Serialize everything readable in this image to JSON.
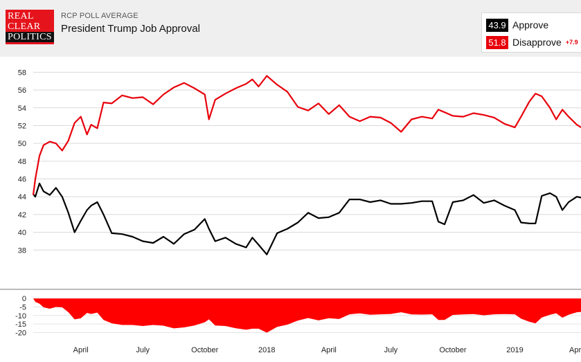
{
  "header": {
    "logo": {
      "line1": "REAL",
      "line2": "CLEAR",
      "line3": "POLITICS"
    },
    "eyebrow": "RCP POLL AVERAGE",
    "title": "President Trump Job Approval"
  },
  "legend": {
    "approve": {
      "value": "43.9",
      "label": "Approve",
      "color": "#000000"
    },
    "disapprove": {
      "value": "51.8",
      "label": "Disapprove",
      "spread": "+7.9",
      "color": "#e8000b"
    }
  },
  "chart_data": [
    {
      "type": "line",
      "title": "President Trump Job Approval",
      "ylim": [
        36,
        58.5
      ],
      "y_ticks": [
        "58",
        "56",
        "54",
        "52",
        "50",
        "48",
        "46",
        "44",
        "42",
        "40",
        "38"
      ],
      "x_ticks": [
        "April",
        "July",
        "October",
        "2018",
        "April",
        "July",
        "October",
        "2019",
        "April"
      ],
      "x_unit": "months since Jan 2017",
      "xlim": [
        0.7,
        27.2
      ],
      "x_tick_positions": [
        3,
        6,
        9,
        12,
        15,
        18,
        21,
        24,
        27
      ],
      "grid": true,
      "legend": "top-right",
      "series": [
        {
          "name": "Approve",
          "color": "#000000",
          "x": [
            0.7,
            0.8,
            1.0,
            1.2,
            1.5,
            1.8,
            2.1,
            2.4,
            2.7,
            3.0,
            3.3,
            3.5,
            3.8,
            4.1,
            4.5,
            5.0,
            5.5,
            6.0,
            6.5,
            7.0,
            7.5,
            8.0,
            8.5,
            9.0,
            9.2,
            9.5,
            10.0,
            10.5,
            11.0,
            11.3,
            11.6,
            12.0,
            12.5,
            13.0,
            13.5,
            14.0,
            14.5,
            15.0,
            15.5,
            16.0,
            16.5,
            17.0,
            17.5,
            18.0,
            18.5,
            19.0,
            19.5,
            20.0,
            20.3,
            20.6,
            21.0,
            21.5,
            22.0,
            22.5,
            23.0,
            23.5,
            24.0,
            24.3,
            24.7,
            25.0,
            25.3,
            25.7,
            26.0,
            26.3,
            26.6,
            27.0,
            27.2
          ],
          "values": [
            44.3,
            44.0,
            45.5,
            44.6,
            44.2,
            45.0,
            44.0,
            42.2,
            40.0,
            41.3,
            42.5,
            43.0,
            43.4,
            42.0,
            39.9,
            39.8,
            39.5,
            39.0,
            38.8,
            39.5,
            38.7,
            39.8,
            40.3,
            41.5,
            40.4,
            39.0,
            39.4,
            38.7,
            38.3,
            39.4,
            38.6,
            37.5,
            39.9,
            40.4,
            41.1,
            42.2,
            41.6,
            41.7,
            42.2,
            43.7,
            43.7,
            43.4,
            43.6,
            43.2,
            43.2,
            43.3,
            43.5,
            43.5,
            41.2,
            40.9,
            43.4,
            43.6,
            44.2,
            43.3,
            43.6,
            43.0,
            42.5,
            41.1,
            41.0,
            41.0,
            44.1,
            44.4,
            44.0,
            42.5,
            43.4,
            44.0,
            43.9
          ]
        },
        {
          "name": "Disapprove",
          "color": "#e8000b",
          "x": [
            0.7,
            0.8,
            1.0,
            1.2,
            1.5,
            1.8,
            2.1,
            2.4,
            2.7,
            3.0,
            3.3,
            3.5,
            3.8,
            4.1,
            4.5,
            5.0,
            5.5,
            6.0,
            6.5,
            7.0,
            7.5,
            8.0,
            8.5,
            9.0,
            9.2,
            9.5,
            10.0,
            10.5,
            11.0,
            11.3,
            11.6,
            12.0,
            12.5,
            13.0,
            13.5,
            14.0,
            14.5,
            15.0,
            15.5,
            16.0,
            16.5,
            17.0,
            17.5,
            18.0,
            18.5,
            19.0,
            19.5,
            20.0,
            20.3,
            20.6,
            21.0,
            21.5,
            22.0,
            22.5,
            23.0,
            23.5,
            24.0,
            24.3,
            24.7,
            25.0,
            25.3,
            25.7,
            26.0,
            26.3,
            26.6,
            27.0,
            27.2
          ],
          "values": [
            44.2,
            46.0,
            48.6,
            49.8,
            50.2,
            50.0,
            49.2,
            50.3,
            52.3,
            53.0,
            51.0,
            52.1,
            51.7,
            54.6,
            54.5,
            55.4,
            55.1,
            55.2,
            54.4,
            55.5,
            56.3,
            56.8,
            56.2,
            55.5,
            52.7,
            54.9,
            55.6,
            56.2,
            56.7,
            57.2,
            56.4,
            57.6,
            56.6,
            55.8,
            54.1,
            53.7,
            54.5,
            53.3,
            54.3,
            53.0,
            52.5,
            53.0,
            52.9,
            52.3,
            51.3,
            52.7,
            53.0,
            52.8,
            53.8,
            53.5,
            53.1,
            53.0,
            53.4,
            53.2,
            52.9,
            52.2,
            51.8,
            53.0,
            54.7,
            55.6,
            55.3,
            54.0,
            52.7,
            53.8,
            53.0,
            52.1,
            51.8
          ]
        }
      ]
    },
    {
      "type": "area",
      "title": "",
      "ylim": [
        -21.5,
        0.5
      ],
      "y_ticks": [
        "0",
        "-5",
        "-10",
        "-15",
        "-20"
      ],
      "xlim": [
        0.7,
        27.2
      ],
      "series": [
        {
          "name": "Spread",
          "color": "#ff0000",
          "x": [
            0.7,
            0.8,
            1.0,
            1.2,
            1.5,
            1.8,
            2.1,
            2.4,
            2.7,
            3.0,
            3.3,
            3.5,
            3.8,
            4.1,
            4.5,
            5.0,
            5.5,
            6.0,
            6.5,
            7.0,
            7.5,
            8.0,
            8.5,
            9.0,
            9.2,
            9.5,
            10.0,
            10.5,
            11.0,
            11.3,
            11.6,
            12.0,
            12.5,
            13.0,
            13.5,
            14.0,
            14.5,
            15.0,
            15.5,
            16.0,
            16.5,
            17.0,
            17.5,
            18.0,
            18.5,
            19.0,
            19.5,
            20.0,
            20.3,
            20.6,
            21.0,
            21.5,
            22.0,
            22.5,
            23.0,
            23.5,
            24.0,
            24.3,
            24.7,
            25.0,
            25.3,
            25.7,
            26.0,
            26.3,
            26.6,
            27.0,
            27.2
          ],
          "values": [
            0,
            -2,
            -3.1,
            -5.2,
            -6.0,
            -5.0,
            -5.2,
            -8.1,
            -12.3,
            -11.7,
            -8.5,
            -9.1,
            -8.3,
            -12.6,
            -14.6,
            -15.6,
            -15.6,
            -16.2,
            -15.6,
            -16.0,
            -17.6,
            -17.0,
            -15.9,
            -14.0,
            -12.3,
            -15.9,
            -16.2,
            -17.5,
            -18.4,
            -17.8,
            -17.8,
            -20.1,
            -16.7,
            -15.4,
            -13.0,
            -11.5,
            -12.9,
            -11.6,
            -12.1,
            -9.3,
            -8.8,
            -9.6,
            -9.3,
            -9.1,
            -8.1,
            -9.4,
            -9.5,
            -9.3,
            -12.6,
            -12.6,
            -9.7,
            -9.4,
            -9.2,
            -9.9,
            -9.3,
            -9.2,
            -9.3,
            -11.9,
            -13.7,
            -14.6,
            -11.2,
            -9.6,
            -8.7,
            -11.3,
            -9.6,
            -8.1,
            -7.9
          ]
        }
      ]
    }
  ]
}
